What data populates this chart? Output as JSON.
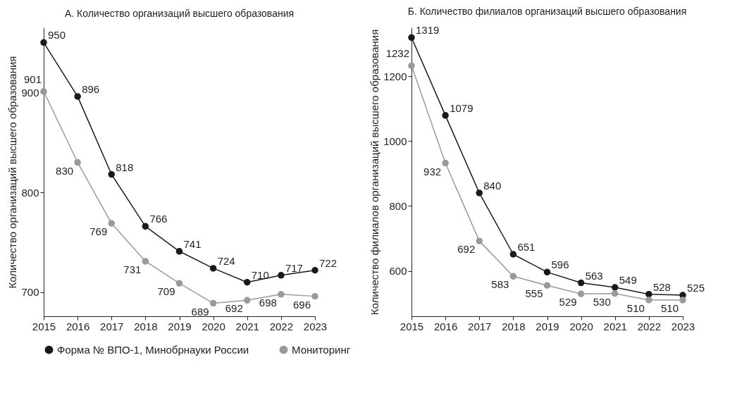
{
  "chart_data": [
    {
      "type": "line",
      "title": "А. Количество организаций высшего образования",
      "ylabel": "Количество организаций высшего образования",
      "x": [
        2015,
        2016,
        2017,
        2018,
        2019,
        2020,
        2021,
        2022,
        2023
      ],
      "series": [
        {
          "name": "Форма № ВПО-1, Минобрнауки России",
          "color": "#1a1a1a",
          "values": [
            950,
            896,
            818,
            766,
            741,
            724,
            710,
            717,
            722
          ]
        },
        {
          "name": "Мониторинг",
          "color": "#9a9a9a",
          "values": [
            901,
            830,
            769,
            731,
            709,
            689,
            692,
            698,
            696
          ]
        }
      ],
      "xlim": [
        2015,
        2023
      ],
      "xticks": [
        2015,
        2016,
        2017,
        2018,
        2019,
        2020,
        2021,
        2022,
        2023
      ],
      "ylim": [
        676,
        965
      ],
      "yticks": [
        700,
        800,
        900
      ],
      "grid": false,
      "legend": "bottom",
      "marker": "circle",
      "line_style": "solid",
      "data_labels": true
    },
    {
      "type": "line",
      "title": "Б. Количество филиалов организаций высшего образования",
      "ylabel": "Количество филиалов организаций высшего образования",
      "x": [
        2015,
        2016,
        2017,
        2018,
        2019,
        2020,
        2021,
        2022,
        2023
      ],
      "series": [
        {
          "name": "Форма № ВПО-1, Минобрнауки России",
          "color": "#1a1a1a",
          "values": [
            1319,
            1079,
            840,
            651,
            596,
            563,
            549,
            528,
            525
          ]
        },
        {
          "name": "Мониторинг",
          "color": "#9a9a9a",
          "values": [
            1232,
            932,
            692,
            583,
            555,
            529,
            530,
            510,
            510
          ]
        }
      ],
      "xlim": [
        2015,
        2023
      ],
      "xticks": [
        2015,
        2016,
        2017,
        2018,
        2019,
        2020,
        2021,
        2022,
        2023
      ],
      "ylim": [
        460,
        1350
      ],
      "yticks": [
        600,
        800,
        1000,
        1200
      ],
      "grid": false,
      "legend": "bottom",
      "marker": "circle",
      "line_style": "solid",
      "data_labels": true
    }
  ]
}
